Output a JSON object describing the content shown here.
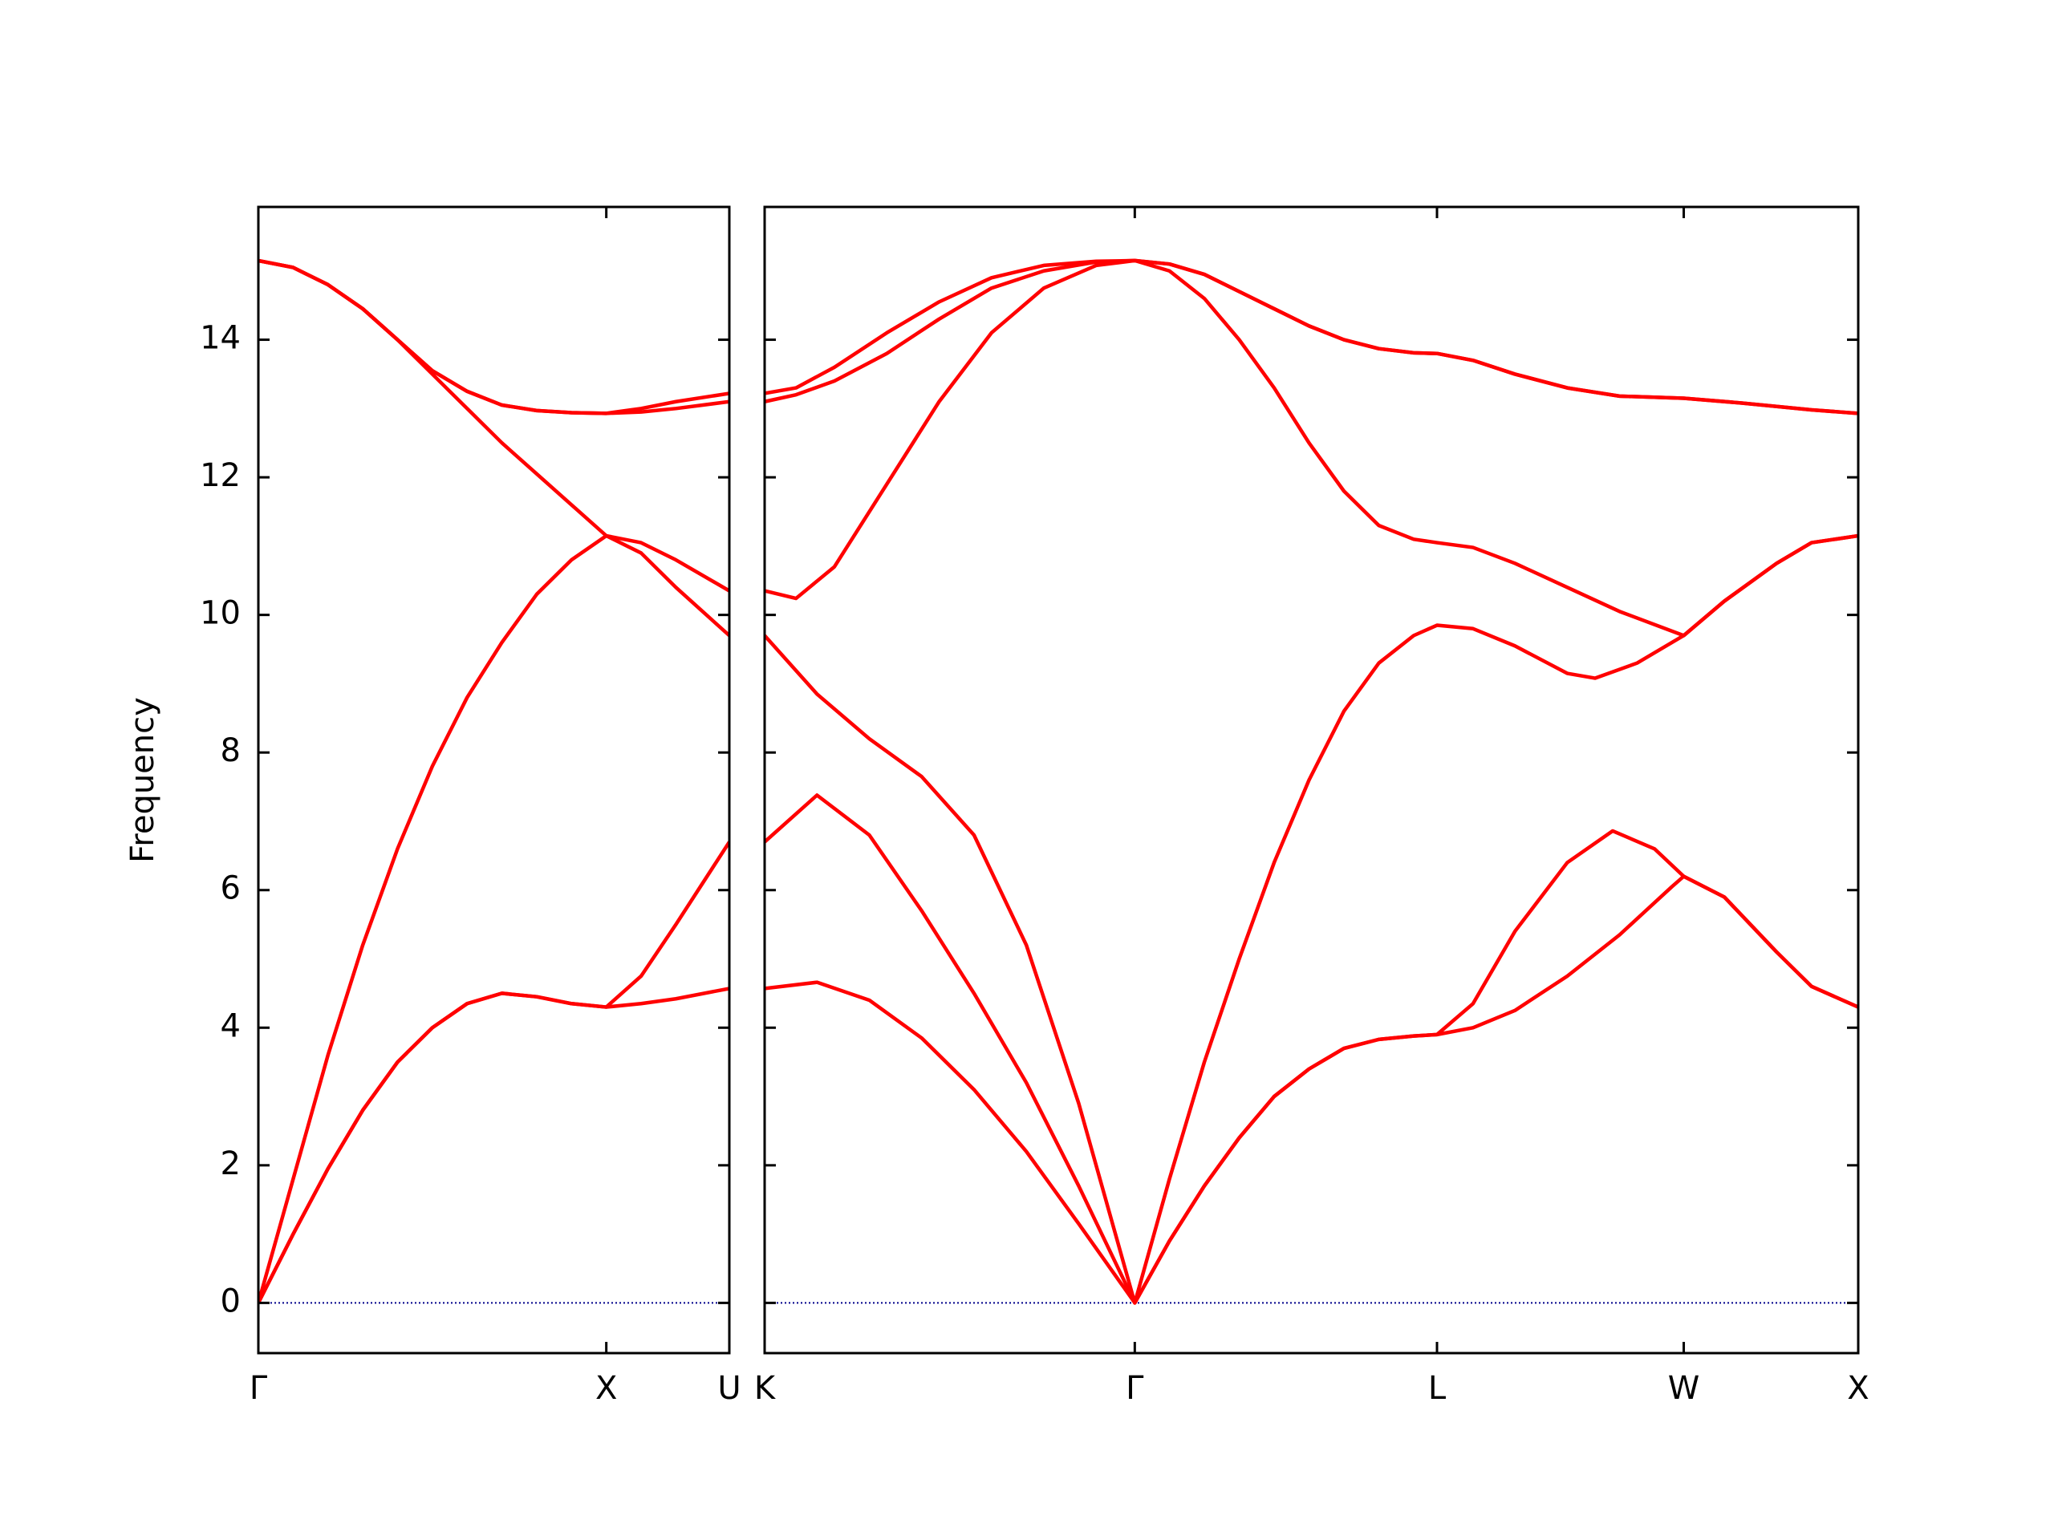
{
  "chart_data": [
    {
      "type": "line",
      "ylabel": "Frequency",
      "xlim": [
        0,
        1.3536
      ],
      "ylim": [
        -0.73,
        15.93
      ],
      "xticks": [
        {
          "value": 0,
          "label": "Γ"
        },
        {
          "value": 1,
          "label": "X"
        },
        {
          "value": 1.3536,
          "label": "U"
        }
      ],
      "yticks": [
        0,
        2,
        4,
        6,
        8,
        10,
        12,
        14
      ],
      "show_ytick_labels": true,
      "hlines": [
        {
          "y": 0,
          "color": "#00008b"
        }
      ],
      "x": [
        0,
        0.1,
        0.2,
        0.3,
        0.4,
        0.5,
        0.6,
        0.7,
        0.8,
        0.9,
        1.0,
        1.1,
        1.2,
        1.3536
      ],
      "series": [
        {
          "color": "#ff0000",
          "values": [
            0,
            1.0,
            1.95,
            2.8,
            3.5,
            4.0,
            4.35,
            4.5,
            4.45,
            4.35,
            4.3,
            4.35,
            4.42,
            4.57
          ]
        },
        {
          "color": "#ff0000",
          "values": [
            0,
            1.0,
            1.95,
            2.8,
            3.5,
            4.0,
            4.35,
            4.5,
            4.45,
            4.35,
            4.3,
            4.75,
            5.5,
            6.7
          ]
        },
        {
          "color": "#ff0000",
          "values": [
            0,
            1.8,
            3.6,
            5.2,
            6.6,
            7.8,
            8.8,
            9.6,
            10.3,
            10.8,
            11.15,
            11.05,
            10.8,
            10.35
          ]
        },
        {
          "color": "#ff0000",
          "values": [
            15.15,
            15.05,
            14.8,
            14.45,
            14.0,
            13.5,
            13.0,
            12.5,
            12.05,
            11.6,
            11.15,
            10.9,
            10.4,
            9.7
          ]
        },
        {
          "color": "#ff0000",
          "values": [
            15.15,
            15.05,
            14.8,
            14.45,
            14.0,
            13.55,
            13.25,
            13.05,
            12.97,
            12.94,
            12.93,
            13.0,
            13.1,
            13.22
          ]
        },
        {
          "color": "#ff0000",
          "values": [
            15.15,
            15.05,
            14.8,
            14.45,
            14.0,
            13.55,
            13.25,
            13.05,
            12.97,
            12.94,
            12.93,
            12.95,
            13.0,
            13.1
          ]
        }
      ]
    },
    {
      "type": "line",
      "xlim": [
        0,
        3.1338
      ],
      "ylim": [
        -0.73,
        15.93
      ],
      "xticks": [
        {
          "value": 0,
          "label": "K"
        },
        {
          "value": 1.0607,
          "label": "Γ"
        },
        {
          "value": 1.9267,
          "label": "L"
        },
        {
          "value": 2.6338,
          "label": "W"
        },
        {
          "value": 3.1338,
          "label": "X"
        }
      ],
      "yticks": [
        0,
        2,
        4,
        6,
        8,
        10,
        12,
        14
      ],
      "show_ytick_labels": false,
      "hlines": [
        {
          "y": 0,
          "color": "#00008b"
        }
      ],
      "series": [
        {
          "color": "#ff0000",
          "x": [
            0,
            0.15,
            0.3,
            0.45,
            0.6,
            0.75,
            0.9,
            1.0607,
            1.16,
            1.26,
            1.36,
            1.46,
            1.56,
            1.66,
            1.76,
            1.86,
            1.9267,
            2.03,
            2.15,
            2.3,
            2.45,
            2.6,
            2.6338,
            2.75,
            2.9,
            3.0,
            3.1338
          ],
          "values": [
            4.57,
            4.66,
            4.4,
            3.85,
            3.1,
            2.2,
            1.15,
            0,
            0.9,
            1.7,
            2.4,
            3.0,
            3.4,
            3.7,
            3.83,
            3.88,
            3.9,
            4.0,
            4.25,
            4.75,
            5.35,
            6.05,
            6.2,
            5.9,
            5.1,
            4.6,
            4.3
          ]
        },
        {
          "color": "#ff0000",
          "x": [
            0,
            0.15,
            0.3,
            0.45,
            0.6,
            0.75,
            0.9,
            1.0607,
            1.16,
            1.26,
            1.36,
            1.46,
            1.56,
            1.66,
            1.76,
            1.86,
            1.9267,
            2.03,
            2.15,
            2.3,
            2.43,
            2.55,
            2.6338,
            2.75,
            2.9,
            3.0,
            3.1338
          ],
          "values": [
            6.7,
            7.38,
            6.8,
            5.7,
            4.5,
            3.2,
            1.7,
            0,
            0.9,
            1.7,
            2.4,
            3.0,
            3.4,
            3.7,
            3.83,
            3.88,
            3.9,
            4.35,
            5.4,
            6.4,
            6.86,
            6.6,
            6.2,
            5.9,
            5.1,
            4.6,
            4.3
          ]
        },
        {
          "color": "#ff0000",
          "x": [
            0,
            0.15,
            0.3,
            0.45,
            0.6,
            0.75,
            0.9,
            1.0607,
            1.16,
            1.26,
            1.36,
            1.46,
            1.56,
            1.66,
            1.76,
            1.86,
            1.9267,
            2.03,
            2.15,
            2.3,
            2.38,
            2.5,
            2.6338,
            2.75,
            2.9,
            3.0,
            3.1338
          ],
          "values": [
            9.7,
            8.85,
            8.2,
            7.65,
            6.8,
            5.2,
            2.9,
            0,
            1.8,
            3.5,
            5.0,
            6.4,
            7.6,
            8.6,
            9.3,
            9.7,
            9.85,
            9.8,
            9.55,
            9.15,
            9.08,
            9.3,
            9.7,
            10.2,
            10.75,
            11.05,
            11.15
          ]
        },
        {
          "color": "#ff0000",
          "x": [
            0,
            0.09,
            0.2,
            0.35,
            0.5,
            0.65,
            0.8,
            0.95,
            1.0607,
            1.16,
            1.26,
            1.36,
            1.46,
            1.56,
            1.66,
            1.76,
            1.86,
            1.9267,
            2.03,
            2.15,
            2.3,
            2.45,
            2.6338,
            2.75,
            2.9,
            3.0,
            3.1338
          ],
          "values": [
            10.35,
            10.24,
            10.7,
            11.9,
            13.1,
            14.1,
            14.75,
            15.08,
            15.15,
            15.0,
            14.6,
            14.0,
            13.3,
            12.5,
            11.8,
            11.3,
            11.1,
            11.05,
            10.98,
            10.75,
            10.4,
            10.05,
            9.7,
            10.2,
            10.75,
            11.05,
            11.15
          ]
        },
        {
          "color": "#ff0000",
          "x": [
            0,
            0.09,
            0.2,
            0.35,
            0.5,
            0.65,
            0.8,
            0.95,
            1.0607,
            1.16,
            1.26,
            1.36,
            1.46,
            1.56,
            1.66,
            1.76,
            1.86,
            1.9267,
            2.03,
            2.15,
            2.3,
            2.45,
            2.6338,
            2.8,
            3.0,
            3.1338
          ],
          "values": [
            13.1,
            13.2,
            13.4,
            13.8,
            14.3,
            14.75,
            15.0,
            15.13,
            15.15,
            15.1,
            14.95,
            14.7,
            14.45,
            14.2,
            14.0,
            13.87,
            13.81,
            13.8,
            13.7,
            13.5,
            13.3,
            13.18,
            13.15,
            13.08,
            12.98,
            12.93
          ]
        },
        {
          "color": "#ff0000",
          "x": [
            0,
            0.09,
            0.2,
            0.35,
            0.5,
            0.65,
            0.8,
            0.95,
            1.0607,
            1.16,
            1.26,
            1.36,
            1.46,
            1.56,
            1.66,
            1.76,
            1.86,
            1.9267,
            2.03,
            2.15,
            2.3,
            2.45,
            2.6338,
            2.8,
            3.0,
            3.1338
          ],
          "values": [
            13.22,
            13.3,
            13.6,
            14.1,
            14.55,
            14.9,
            15.08,
            15.14,
            15.15,
            15.1,
            14.95,
            14.7,
            14.45,
            14.2,
            14.0,
            13.87,
            13.81,
            13.8,
            13.7,
            13.5,
            13.3,
            13.18,
            13.15,
            13.08,
            12.98,
            12.93
          ]
        }
      ]
    }
  ]
}
